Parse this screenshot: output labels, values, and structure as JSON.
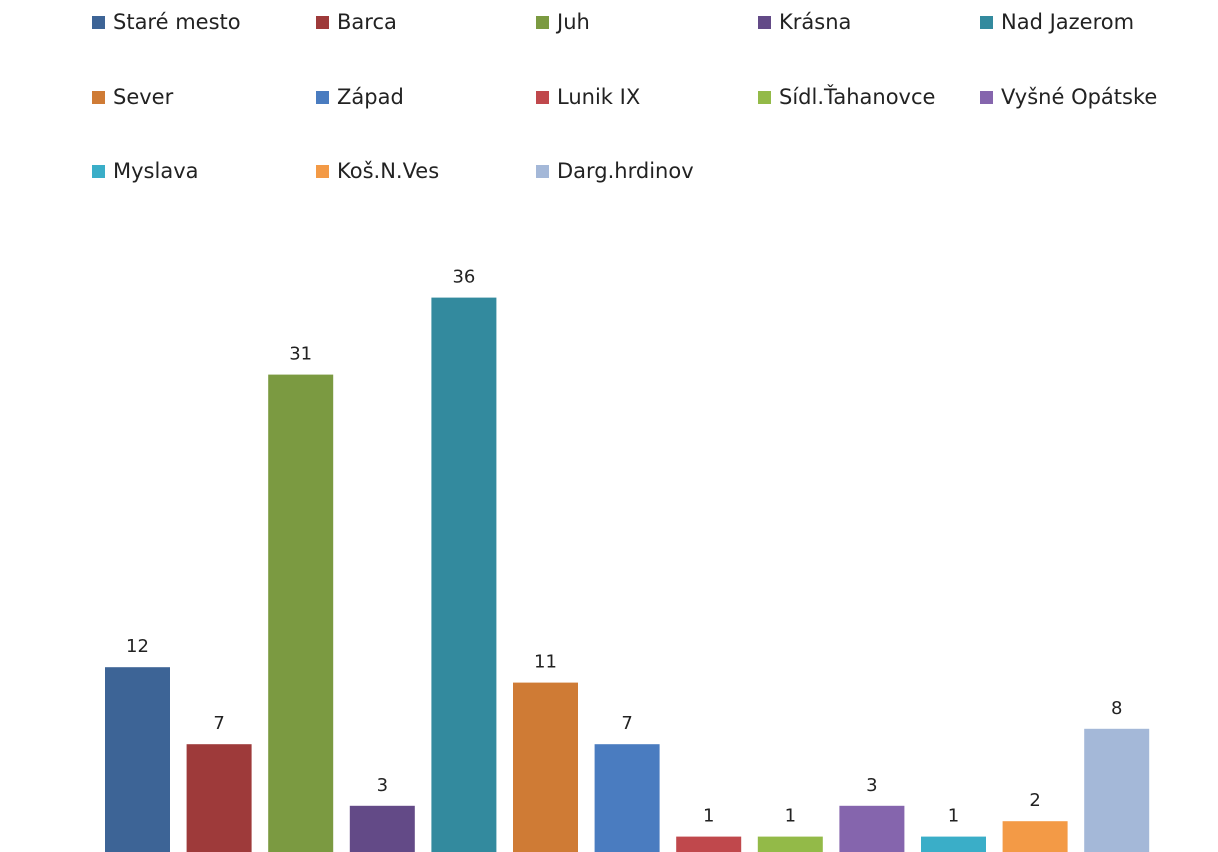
{
  "chart_data": {
    "type": "bar",
    "categories": [
      "Staré mesto",
      "Barca",
      "Juh",
      "Krásna",
      "Nad Jazerom",
      "Sever",
      "Západ",
      "Lunik IX",
      "Sídl.Ťahanovce",
      "Vyšné Opátske",
      "Myslava",
      "Koš.N.Ves",
      "Darg.hrdinov"
    ],
    "values": [
      12,
      7,
      31,
      3,
      36,
      11,
      7,
      1,
      1,
      3,
      1,
      2,
      8
    ],
    "colors": [
      "#3d6496",
      "#9e3a3a",
      "#7b9a41",
      "#634a87",
      "#338a9e",
      "#cf7b35",
      "#4a7cc0",
      "#c0484c",
      "#93ba48",
      "#8565ad",
      "#3aaec8",
      "#f39a46",
      "#a4b8d8"
    ],
    "ylim": [
      0,
      40
    ],
    "grid": false,
    "legend": "top",
    "title": "",
    "xlabel": "",
    "ylabel": ""
  }
}
